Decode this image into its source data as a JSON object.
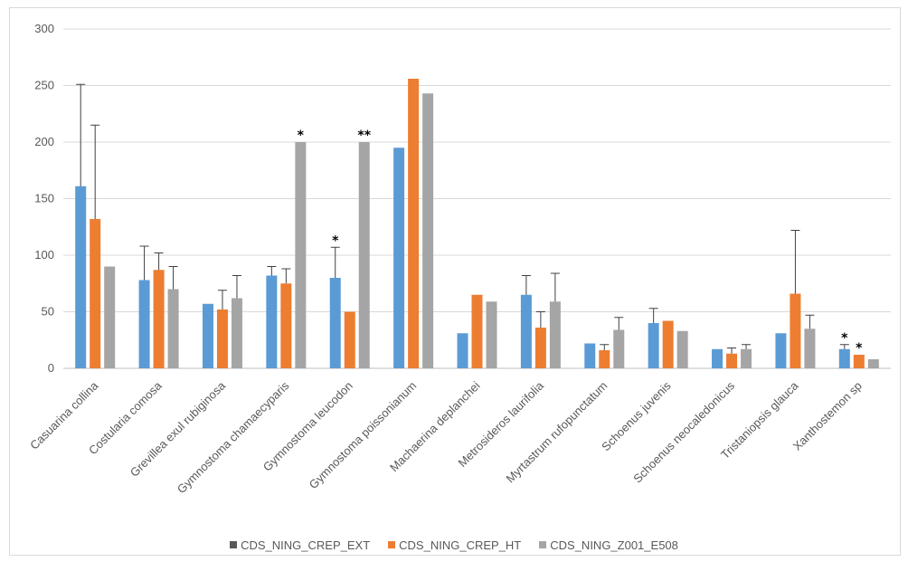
{
  "chart_data": {
    "type": "bar",
    "title": "",
    "xlabel": "",
    "ylabel": "",
    "ylim": [
      0,
      300
    ],
    "yticks": [
      0,
      50,
      100,
      150,
      200,
      250,
      300
    ],
    "grid": true,
    "legend_position": "bottom",
    "categories": [
      "Casuarina collina",
      "Costularia comosa",
      "Grevillea exul rubiginosa",
      "Gymnostoma chamaecyparis",
      "Gymnostoma leucodon",
      "Gymnostoma poissonianum",
      "Machaerina deplanchei",
      "Metrosideros laurifolia",
      "Myrtastrum rufopunctatum",
      "Schoenus juvenis",
      "Schoenus neocaledonicus",
      "Tristaniopsis glauca",
      "Xanthostemon sp"
    ],
    "series": [
      {
        "name": "CDS_NING_CREP_EXT",
        "color": "#5b9bd5",
        "legend_swatch_color": "#595959",
        "values": [
          161,
          78,
          57,
          82,
          80,
          195,
          31,
          65,
          22,
          40,
          17,
          31,
          17
        ],
        "error_upper": [
          251,
          108,
          null,
          90,
          107,
          null,
          null,
          82,
          null,
          53,
          null,
          null,
          21
        ],
        "annotations": [
          "",
          "",
          "",
          "",
          "*",
          "",
          "",
          "",
          "",
          "",
          "",
          "",
          "*"
        ]
      },
      {
        "name": "CDS_NING_CREP_HT",
        "color": "#ed7d31",
        "legend_swatch_color": "#ed7d31",
        "values": [
          132,
          87,
          52,
          75,
          50,
          256,
          65,
          36,
          16,
          42,
          13,
          66,
          12
        ],
        "error_upper": [
          215,
          102,
          69,
          88,
          null,
          null,
          null,
          50,
          21,
          null,
          18,
          122,
          null
        ],
        "annotations": [
          "",
          "",
          "",
          "",
          "",
          "",
          "",
          "",
          "",
          "",
          "",
          "",
          "*"
        ]
      },
      {
        "name": "CDS_NING_Z001_E508",
        "color": "#a5a5a5",
        "legend_swatch_color": "#a5a5a5",
        "values": [
          90,
          70,
          62,
          200,
          200,
          243,
          59,
          59,
          34,
          33,
          17,
          35,
          8
        ],
        "error_upper": [
          null,
          90,
          82,
          null,
          null,
          null,
          null,
          84,
          45,
          null,
          21,
          47,
          null
        ],
        "annotations": [
          "",
          "",
          "",
          "*",
          "**",
          "",
          "",
          "",
          "",
          "",
          "",
          "",
          ""
        ]
      }
    ]
  }
}
